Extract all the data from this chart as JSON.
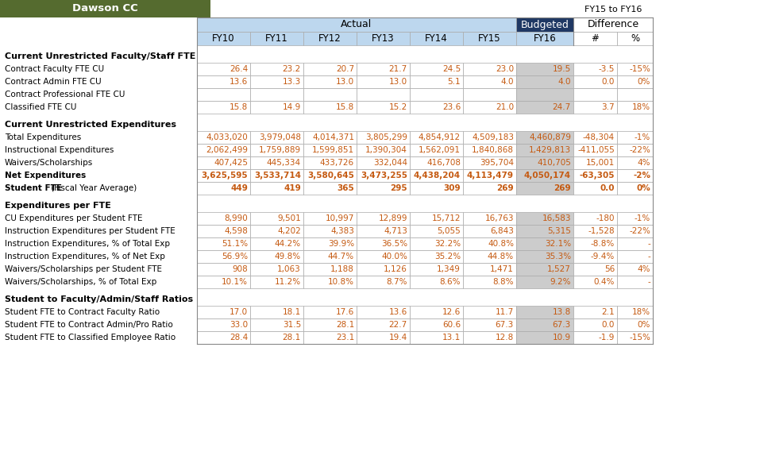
{
  "title": "Dawson CC",
  "title_bg": "#556B2F",
  "title_fg": "#FFFFFF",
  "header_actual_bg": "#BDD7EE",
  "header_budgeted_bg": "#1F3864",
  "header_budgeted_fg": "#FFFFFF",
  "budgeted_col_bg": "#CCCCCC",
  "data_text_color": "#C55A11",
  "fy15_to_fy16_label": "FY15 to FY16",
  "sections": [
    {
      "section_title": "Current Unrestricted Faculty/Staff FTE",
      "rows": [
        {
          "label": "Contract Faculty FTE CU",
          "bold": false,
          "blank_data": false,
          "values": [
            "26.4",
            "23.2",
            "20.7",
            "21.7",
            "24.5",
            "23.0",
            "19.5",
            "-3.5",
            "-15%"
          ]
        },
        {
          "label": "Contract Admin FTE CU",
          "bold": false,
          "blank_data": false,
          "values": [
            "13.6",
            "13.3",
            "13.0",
            "13.0",
            "5.1",
            "4.0",
            "4.0",
            "0.0",
            "0%"
          ]
        },
        {
          "label": "Contract Professional FTE CU",
          "bold": false,
          "blank_data": true,
          "values": [
            "",
            "",
            "",
            "",
            "",
            "",
            "",
            "",
            ""
          ]
        },
        {
          "label": "Classified FTE CU",
          "bold": false,
          "blank_data": false,
          "values": [
            "15.8",
            "14.9",
            "15.8",
            "15.2",
            "23.6",
            "21.0",
            "24.7",
            "3.7",
            "18%"
          ]
        }
      ]
    },
    {
      "section_title": "Current Unrestricted Expenditures",
      "rows": [
        {
          "label": "Total Expenditures",
          "bold": false,
          "blank_data": false,
          "values": [
            "4,033,020",
            "3,979,048",
            "4,014,371",
            "3,805,299",
            "4,854,912",
            "4,509,183",
            "4,460,879",
            "-48,304",
            "-1%"
          ]
        },
        {
          "label": "Instructional Expenditures",
          "bold": false,
          "blank_data": false,
          "values": [
            "2,062,499",
            "1,759,889",
            "1,599,851",
            "1,390,304",
            "1,562,091",
            "1,840,868",
            "1,429,813",
            "-411,055",
            "-22%"
          ]
        },
        {
          "label": "Waivers/Scholarships",
          "bold": false,
          "blank_data": false,
          "values": [
            "407,425",
            "445,334",
            "433,726",
            "332,044",
            "416,708",
            "395,704",
            "410,705",
            "15,001",
            "4%"
          ]
        },
        {
          "label": "Net Expenditures",
          "bold": true,
          "blank_data": false,
          "values": [
            "3,625,595",
            "3,533,714",
            "3,580,645",
            "3,473,255",
            "4,438,204",
            "4,113,479",
            "4,050,174",
            "-63,305",
            "-2%"
          ]
        },
        {
          "label": "Student FTE (Fiscal Year Average)",
          "bold": true,
          "partial_bold": true,
          "blank_data": false,
          "values": [
            "449",
            "419",
            "365",
            "295",
            "309",
            "269",
            "269",
            "0.0",
            "0%"
          ]
        }
      ]
    },
    {
      "section_title": "Expenditures per FTE",
      "rows": [
        {
          "label": "CU Expenditures per Student FTE",
          "bold": false,
          "blank_data": false,
          "values": [
            "8,990",
            "9,501",
            "10,997",
            "12,899",
            "15,712",
            "16,763",
            "16,583",
            "-180",
            "-1%"
          ]
        },
        {
          "label": "Instruction Expenditures per Student FTE",
          "bold": false,
          "blank_data": false,
          "values": [
            "4,598",
            "4,202",
            "4,383",
            "4,713",
            "5,055",
            "6,843",
            "5,315",
            "-1,528",
            "-22%"
          ]
        },
        {
          "label": "Instruction Expenditures, % of Total Exp",
          "bold": false,
          "blank_data": false,
          "values": [
            "51.1%",
            "44.2%",
            "39.9%",
            "36.5%",
            "32.2%",
            "40.8%",
            "32.1%",
            "-8.8%",
            "-"
          ]
        },
        {
          "label": "Instruction Expenditures, % of Net Exp",
          "bold": false,
          "blank_data": false,
          "values": [
            "56.9%",
            "49.8%",
            "44.7%",
            "40.0%",
            "35.2%",
            "44.8%",
            "35.3%",
            "-9.4%",
            "-"
          ]
        },
        {
          "label": "Waivers/Scholarships per Student FTE",
          "bold": false,
          "blank_data": false,
          "values": [
            "908",
            "1,063",
            "1,188",
            "1,126",
            "1,349",
            "1,471",
            "1,527",
            "56",
            "4%"
          ]
        },
        {
          "label": "Waivers/Scholarships, % of Total Exp",
          "bold": false,
          "blank_data": false,
          "values": [
            "10.1%",
            "11.2%",
            "10.8%",
            "8.7%",
            "8.6%",
            "8.8%",
            "9.2%",
            "0.4%",
            "-"
          ]
        }
      ]
    },
    {
      "section_title": "Student to Faculty/Admin/Staff Ratios",
      "rows": [
        {
          "label": "Student FTE to Contract Faculty Ratio",
          "bold": false,
          "blank_data": false,
          "values": [
            "17.0",
            "18.1",
            "17.6",
            "13.6",
            "12.6",
            "11.7",
            "13.8",
            "2.1",
            "18%"
          ]
        },
        {
          "label": "Student FTE to Contract Admin/Pro Ratio",
          "bold": false,
          "blank_data": false,
          "values": [
            "33.0",
            "31.5",
            "28.1",
            "22.7",
            "60.6",
            "67.3",
            "67.3",
            "0.0",
            "0%"
          ]
        },
        {
          "label": "Student FTE to Classified Employee Ratio",
          "bold": false,
          "blank_data": false,
          "values": [
            "28.4",
            "28.1",
            "23.1",
            "19.4",
            "13.1",
            "12.8",
            "10.9",
            "-1.9",
            "-15%"
          ]
        }
      ]
    }
  ]
}
